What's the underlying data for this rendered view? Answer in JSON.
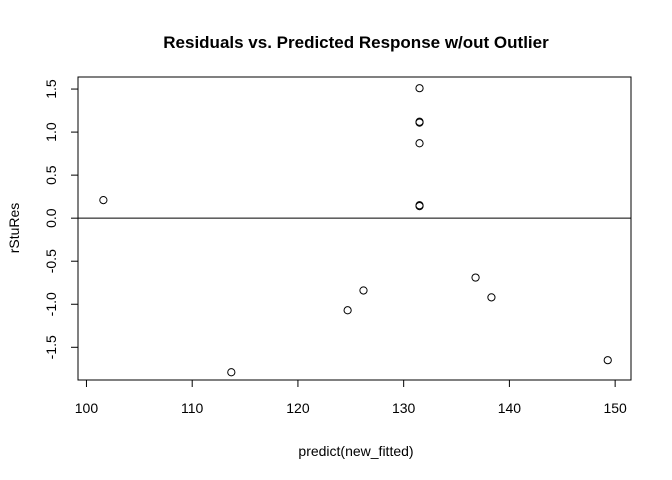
{
  "chart_data": {
    "type": "scatter",
    "title": "Residuals vs. Predicted Response w/out Outlier",
    "xlabel": "predict(new_fitted)",
    "ylabel": "rStuRes",
    "xlim": [
      99.2,
      151.5
    ],
    "ylim": [
      -1.88,
      1.64
    ],
    "x_ticks": [
      100,
      110,
      120,
      130,
      140,
      150
    ],
    "x_tick_labels": [
      "100",
      "110",
      "120",
      "130",
      "140",
      "150"
    ],
    "y_ticks": [
      -1.5,
      -1.0,
      -0.5,
      0.0,
      0.5,
      1.0,
      1.5
    ],
    "y_tick_labels": [
      "-1.5",
      "-1.0",
      "-0.5",
      "0.0",
      "0.5",
      "1.0",
      "1.5"
    ],
    "reference_line_y": 0,
    "points": [
      {
        "x": 101.6,
        "y": 0.21
      },
      {
        "x": 113.7,
        "y": -1.79
      },
      {
        "x": 124.7,
        "y": -1.07
      },
      {
        "x": 126.2,
        "y": -0.84
      },
      {
        "x": 131.5,
        "y": 1.51
      },
      {
        "x": 131.5,
        "y": 1.12
      },
      {
        "x": 131.5,
        "y": 1.11
      },
      {
        "x": 131.5,
        "y": 0.87
      },
      {
        "x": 131.5,
        "y": 0.15
      },
      {
        "x": 131.5,
        "y": 0.14
      },
      {
        "x": 136.8,
        "y": -0.69
      },
      {
        "x": 138.3,
        "y": -0.92
      },
      {
        "x": 149.3,
        "y": -1.65
      }
    ]
  }
}
